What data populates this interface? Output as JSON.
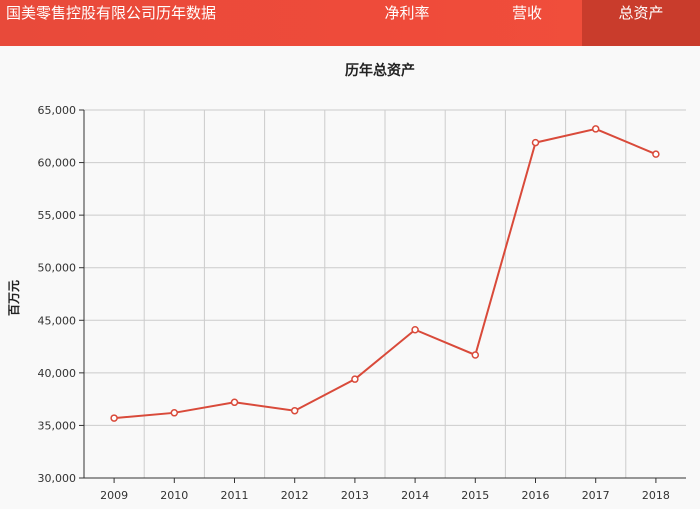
{
  "header": {
    "title": "国美零售控股有限公司历年数据",
    "tabs": [
      {
        "label": "净利率",
        "active": false
      },
      {
        "label": "营收",
        "active": false
      },
      {
        "label": "总资产",
        "active": true
      }
    ]
  },
  "colors": {
    "header_bg": "#ee4b39",
    "active_tab_bg": "#c93c2c",
    "line": "#d94a3a"
  },
  "chart_data": {
    "type": "line",
    "title": "历年总资产",
    "xlabel": "",
    "ylabel": "百万元",
    "categories": [
      "2009",
      "2010",
      "2011",
      "2012",
      "2013",
      "2014",
      "2015",
      "2016",
      "2017",
      "2018"
    ],
    "series": [
      {
        "name": "",
        "values": [
          35700,
          36200,
          37200,
          36400,
          39400,
          44100,
          41700,
          61900,
          63200,
          60800
        ]
      }
    ],
    "ylim": [
      30000,
      65000
    ],
    "yticks": [
      "30,000",
      "35,000",
      "40,000",
      "45,000",
      "50,000",
      "55,000",
      "60,000",
      "65,000"
    ],
    "grid": true,
    "legend": "none"
  }
}
